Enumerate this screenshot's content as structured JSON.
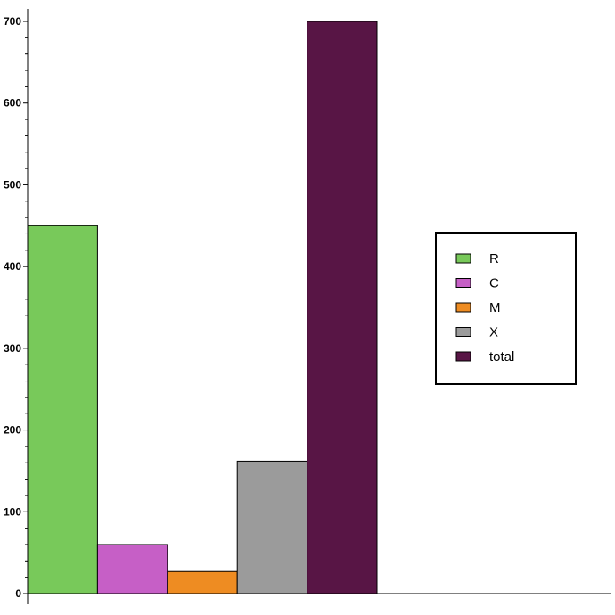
{
  "chart_data": {
    "type": "bar",
    "categories": [
      "R",
      "C",
      "M",
      "X",
      "total"
    ],
    "values": [
      450,
      60,
      27,
      162,
      700
    ],
    "colors": [
      "#78C95A",
      "#C65FC6",
      "#EE8C22",
      "#9B9B9B",
      "#581545"
    ],
    "yticks": [
      0,
      100,
      200,
      300,
      400,
      500,
      600,
      700
    ],
    "ylim": [
      0,
      715
    ],
    "title": "",
    "xlabel": "",
    "ylabel": "",
    "grid": false,
    "legend": {
      "position": "right",
      "entries": [
        "R",
        "C",
        "M",
        "X",
        "total"
      ]
    }
  }
}
